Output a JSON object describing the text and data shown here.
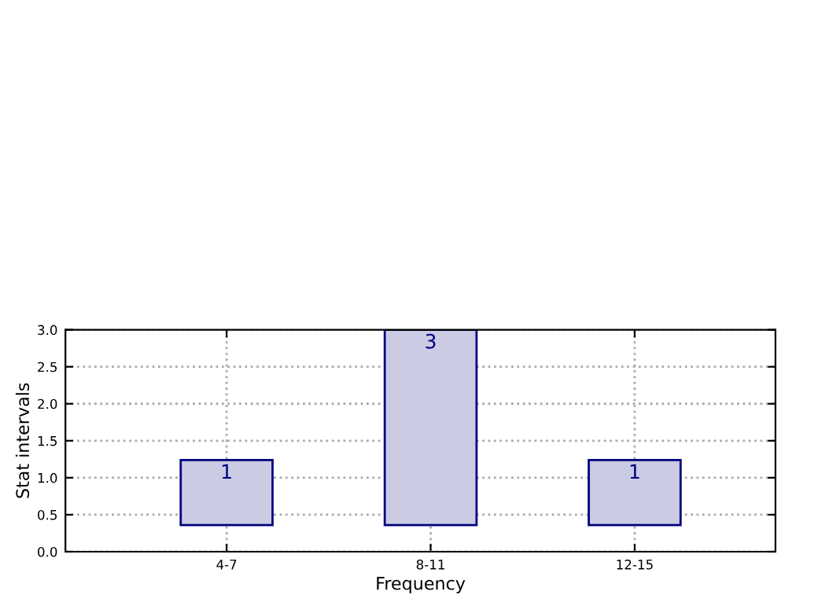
{
  "chart_data": {
    "type": "bar",
    "xlabel": "Frequency",
    "ylabel": "Stat intervals",
    "categories": [
      "4-7",
      "8-11",
      "12-15"
    ],
    "base": [
      0.36,
      0.36,
      0.36
    ],
    "values": [
      0.88,
      2.64,
      0.88
    ],
    "value_labels": [
      "1",
      "3",
      "1"
    ],
    "color": "#cbcbe3",
    "ylim": [
      0.0,
      3.0
    ],
    "yticks": [
      {
        "value": 0.0,
        "label": "0.0"
      },
      {
        "value": 0.5,
        "label": "0.5"
      },
      {
        "value": 1.0,
        "label": "1.0"
      },
      {
        "value": 1.5,
        "label": "1.5"
      },
      {
        "value": 2.0,
        "label": "2.0"
      },
      {
        "value": 2.5,
        "label": "2.5"
      },
      {
        "value": 3.0,
        "label": "3.0"
      }
    ],
    "grid": true,
    "legend": false
  }
}
